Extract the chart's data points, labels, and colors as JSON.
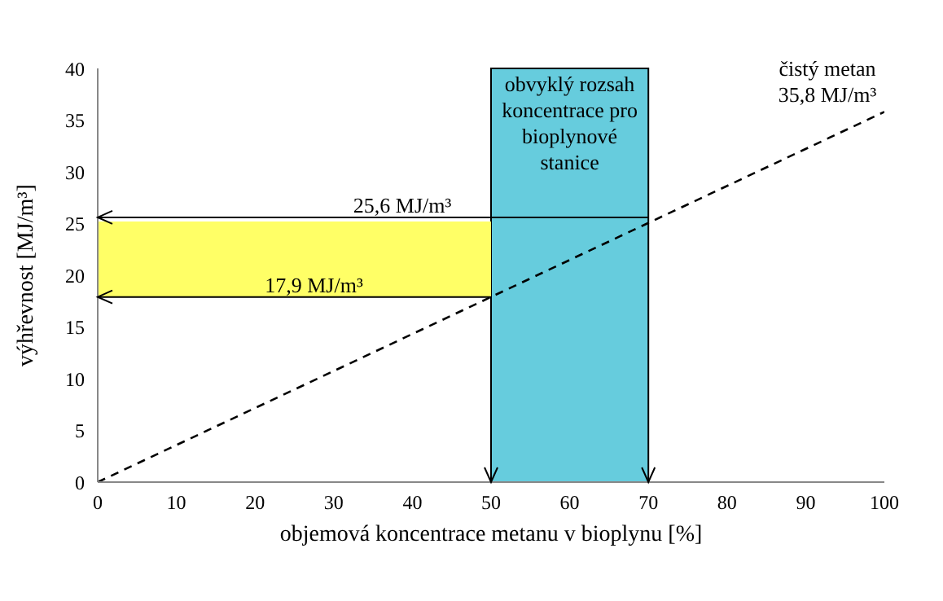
{
  "chart_data": {
    "type": "line",
    "xlabel": "objemová koncentrace metanu v bioplynu [%]",
    "ylabel": "výhřevnost [MJ/m³]",
    "series": [
      {
        "type": "line",
        "x": [
          0,
          100
        ],
        "values": [
          0,
          35.8
        ],
        "color": "#000000",
        "line_style": "dashed",
        "marker": "none"
      }
    ],
    "bands": [
      {
        "axis": "x",
        "from": 50,
        "to": 70,
        "color": "#66ccdd",
        "label": "obvyklý rozsah koncentrace pro bioplynové stanice"
      },
      {
        "axis": "y",
        "from": 17.9,
        "to": 25.2,
        "color": "#ffff66"
      }
    ],
    "annotations": [
      {
        "text": "čistý metan 35,8 MJ/m³",
        "x": 100,
        "y": 35.8
      }
    ],
    "ref_lines": [
      {
        "axis": "y",
        "value": 25.6,
        "label": "25,6 MJ/m³",
        "color": "#000000"
      },
      {
        "axis": "y",
        "value": 17.9,
        "label": "17,9 MJ/m³",
        "color": "#000000"
      }
    ],
    "xlim": [
      0,
      100
    ],
    "xticks": [
      0,
      10,
      20,
      30,
      40,
      50,
      60,
      70,
      80,
      90,
      100
    ],
    "ylim": [
      0,
      40
    ],
    "yticks": [
      0,
      5,
      10,
      15,
      20,
      25,
      30,
      35,
      40
    ],
    "grid": false,
    "legend": false
  }
}
